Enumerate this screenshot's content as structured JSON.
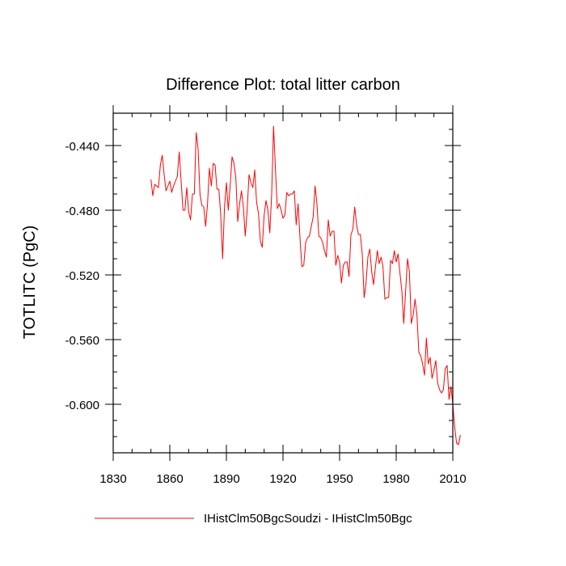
{
  "chart_data": {
    "type": "line",
    "title": "Difference Plot: total litter carbon",
    "xlabel": "",
    "ylabel": "TOTLITC  (PgC)",
    "xlim": [
      1830,
      2010
    ],
    "ylim": [
      -0.63,
      -0.42
    ],
    "x_ticks": [
      1830,
      1860,
      1890,
      1920,
      1950,
      1980,
      2010
    ],
    "y_ticks": [
      -0.44,
      -0.48,
      -0.52,
      -0.56,
      -0.6
    ],
    "x_tick_labels": [
      "1830",
      "1860",
      "1890",
      "1920",
      "1950",
      "1980",
      "2010"
    ],
    "y_tick_labels": [
      "-0.440",
      "-0.480",
      "-0.520",
      "-0.560",
      "-0.600"
    ],
    "legend_position": "bottom",
    "series": [
      {
        "name": "IHistClm50BgcSoudzi - IHistClm50Bgc",
        "color": "#ff0000",
        "x_start": 1850,
        "values": [
          -0.461,
          -0.471,
          -0.464,
          -0.465,
          -0.466,
          -0.452,
          -0.446,
          -0.458,
          -0.468,
          -0.465,
          -0.462,
          -0.469,
          -0.465,
          -0.462,
          -0.459,
          -0.444,
          -0.462,
          -0.48,
          -0.48,
          -0.466,
          -0.481,
          -0.486,
          -0.47,
          -0.47,
          -0.432,
          -0.442,
          -0.47,
          -0.477,
          -0.478,
          -0.49,
          -0.476,
          -0.454,
          -0.465,
          -0.451,
          -0.452,
          -0.467,
          -0.467,
          -0.483,
          -0.51,
          -0.478,
          -0.463,
          -0.48,
          -0.465,
          -0.447,
          -0.451,
          -0.46,
          -0.487,
          -0.476,
          -0.468,
          -0.478,
          -0.496,
          -0.48,
          -0.458,
          -0.463,
          -0.466,
          -0.455,
          -0.475,
          -0.482,
          -0.499,
          -0.503,
          -0.483,
          -0.474,
          -0.48,
          -0.494,
          -0.47,
          -0.428,
          -0.455,
          -0.479,
          -0.476,
          -0.48,
          -0.485,
          -0.483,
          -0.469,
          -0.471,
          -0.47,
          -0.47,
          -0.468,
          -0.489,
          -0.476,
          -0.497,
          -0.515,
          -0.514,
          -0.5,
          -0.497,
          -0.496,
          -0.49,
          -0.484,
          -0.465,
          -0.476,
          -0.496,
          -0.497,
          -0.5,
          -0.505,
          -0.509,
          -0.486,
          -0.496,
          -0.493,
          -0.493,
          -0.514,
          -0.508,
          -0.512,
          -0.525,
          -0.514,
          -0.512,
          -0.512,
          -0.521,
          -0.495,
          -0.492,
          -0.478,
          -0.489,
          -0.495,
          -0.495,
          -0.507,
          -0.534,
          -0.525,
          -0.509,
          -0.504,
          -0.518,
          -0.526,
          -0.515,
          -0.505,
          -0.513,
          -0.509,
          -0.515,
          -0.535,
          -0.534,
          -0.534,
          -0.511,
          -0.513,
          -0.505,
          -0.512,
          -0.507,
          -0.519,
          -0.53,
          -0.55,
          -0.53,
          -0.51,
          -0.518,
          -0.55,
          -0.545,
          -0.535,
          -0.545,
          -0.568,
          -0.57,
          -0.575,
          -0.582,
          -0.559,
          -0.575,
          -0.571,
          -0.584,
          -0.579,
          -0.573,
          -0.587,
          -0.591,
          -0.593,
          -0.591,
          -0.578,
          -0.576,
          -0.597,
          -0.589,
          -0.6,
          -0.614,
          -0.624,
          -0.625,
          -0.619
        ]
      }
    ]
  }
}
